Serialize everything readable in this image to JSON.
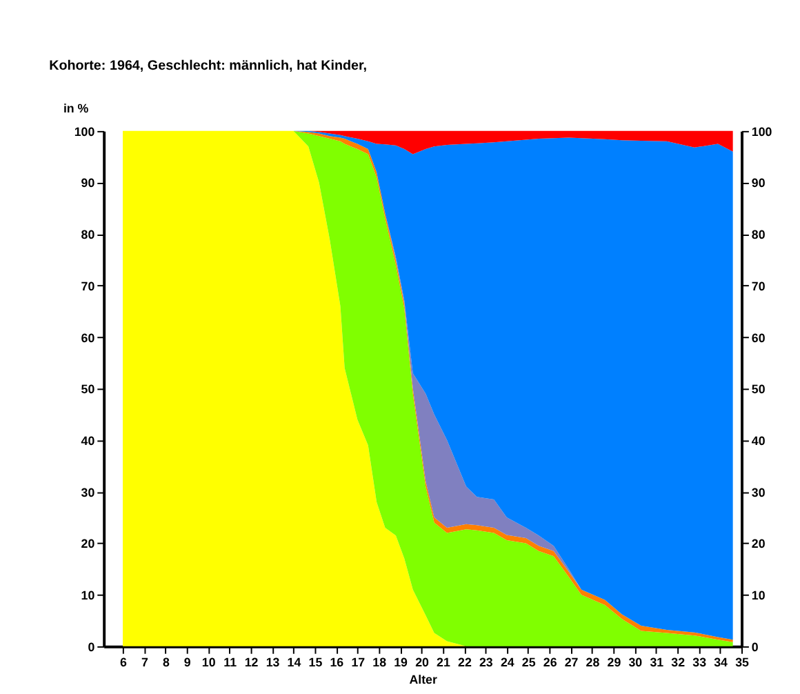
{
  "chart_data": {
    "type": "area",
    "stacked": true,
    "title": "Kohorte: 1964, Geschlecht: männlich, hat Kinder,",
    "ylabel": "in %",
    "xlabel": "Alter",
    "x": [
      6,
      14,
      14.7,
      15.2,
      15.7,
      16.2,
      16.4,
      17.0,
      17.5,
      17.9,
      18.3,
      18.8,
      19.2,
      19.6,
      20.2,
      20.6,
      21.2,
      22.1,
      22.6,
      23.4,
      24.0,
      24.9,
      25.5,
      26.2,
      26.9,
      27.5,
      28.6,
      29.4,
      30.3,
      31.5,
      32.8,
      33.9,
      34.6
    ],
    "series": [
      {
        "color": "#ffff00",
        "values": [
          100,
          100,
          97,
          90,
          79,
          66,
          54,
          44,
          39,
          28,
          23,
          21.5,
          17,
          11,
          6,
          2.6,
          1,
          0,
          null,
          null,
          null,
          null,
          null,
          null,
          null,
          null,
          null,
          null,
          null,
          null,
          null,
          null,
          null
        ]
      },
      {
        "color": "#80ff00",
        "values": [
          null,
          0,
          2.5,
          9,
          19.5,
          32,
          43.5,
          52.5,
          56.5,
          63,
          60,
          52.5,
          48.5,
          38,
          25,
          21.4,
          21,
          22.7,
          22.5,
          22,
          20.6,
          20,
          18.5,
          17.5,
          13.5,
          10,
          8,
          5.3,
          3,
          2.6,
          2.1,
          1.3,
          0.8
        ]
      },
      {
        "color": "#ff8000",
        "values": [
          null,
          0,
          0.3,
          0.5,
          0.5,
          0.7,
          1,
          1,
          1,
          1,
          1,
          1,
          1,
          1,
          1,
          1,
          1,
          1,
          1,
          1,
          1,
          1,
          1,
          1,
          1,
          1,
          1,
          0.9,
          1,
          0.6,
          0.6,
          0.5,
          0.5
        ]
      },
      {
        "color": "#8080c0",
        "values": [
          null,
          null,
          null,
          null,
          null,
          null,
          null,
          null,
          null,
          null,
          0,
          0.5,
          0.5,
          3,
          17,
          20,
          17,
          7.3,
          5.5,
          5.5,
          3.4,
          2,
          2,
          1,
          0.5,
          0,
          null,
          null,
          null,
          null,
          null,
          null,
          null
        ]
      },
      {
        "color": "#0080ff",
        "values": [
          null,
          0,
          0.2,
          0.3,
          0.5,
          0.5,
          0.5,
          1,
          1.5,
          5.5,
          13.4,
          21.7,
          29.5,
          42.5,
          47.5,
          52,
          57.3,
          66.5,
          68.6,
          69.3,
          73,
          75.3,
          77,
          79.1,
          83.7,
          87.6,
          89.4,
          92,
          94.1,
          94.8,
          94.1,
          95.7,
          94.7
        ]
      },
      {
        "color": "#ff0000",
        "values": [
          null,
          0,
          0,
          0.2,
          0.5,
          0.8,
          1,
          1.5,
          2,
          2.5,
          2.6,
          2.8,
          3.5,
          4.5,
          3.5,
          3,
          2.7,
          2.5,
          2.4,
          2.2,
          2,
          1.7,
          1.5,
          1.4,
          1.3,
          1.4,
          1.6,
          1.8,
          1.9,
          2,
          3.2,
          2.5,
          4
        ]
      }
    ],
    "xlim": [
      5.1,
      35
    ],
    "xticks": [
      6,
      7,
      8,
      9,
      10,
      11,
      12,
      13,
      14,
      15,
      16,
      17,
      18,
      19,
      20,
      21,
      22,
      23,
      24,
      25,
      26,
      27,
      28,
      29,
      30,
      31,
      32,
      33,
      34,
      35
    ],
    "ylim": [
      0,
      100
    ],
    "yticks": [
      0,
      10,
      20,
      30,
      40,
      50,
      60,
      70,
      80,
      90,
      100
    ],
    "y2lim": [
      0,
      100
    ],
    "y2ticks": [
      0,
      10,
      20,
      30,
      40,
      50,
      60,
      70,
      80,
      90,
      100
    ],
    "grid": false,
    "legend": false
  }
}
